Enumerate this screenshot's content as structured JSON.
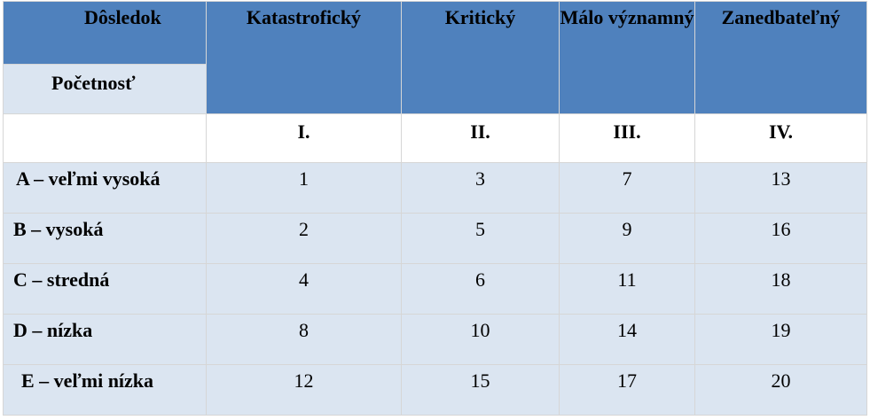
{
  "table": {
    "corner_top_label": "Dôsledok",
    "corner_bottom_label": "Početnosť",
    "column_headers": [
      "Katastrofický",
      "Kritický",
      "Málo významný",
      "Zanedbateľný"
    ],
    "roman_numerals": [
      "I.",
      "II.",
      "III.",
      "IV."
    ],
    "rows": [
      {
        "label": "A – veľmi vysoká",
        "values": [
          "1",
          "3",
          "7",
          "13"
        ]
      },
      {
        "label": "B – vysoká",
        "values": [
          "2",
          "5",
          "9",
          "16"
        ]
      },
      {
        "label": "C – stredná",
        "values": [
          "4",
          "6",
          "11",
          "18"
        ]
      },
      {
        "label": "D – nízka",
        "values": [
          "8",
          "10",
          "14",
          "19"
        ]
      },
      {
        "label": "E – veľmi nízka",
        "values": [
          "12",
          "15",
          "17",
          "20"
        ]
      }
    ]
  },
  "colors": {
    "header_blue": "#4f81bd",
    "row_light_blue": "#dbe5f1",
    "white": "#ffffff"
  }
}
